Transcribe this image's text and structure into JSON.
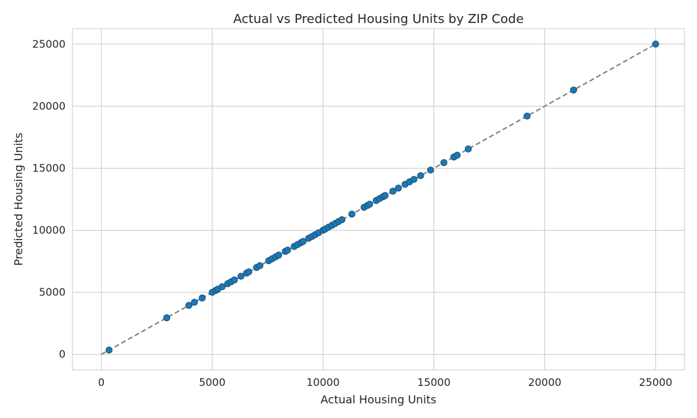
{
  "chart_data": {
    "type": "scatter",
    "title": "Actual vs Predicted Housing Units by ZIP Code",
    "xlabel": "Actual Housing Units",
    "ylabel": "Predicted Housing Units",
    "xlim": [
      -1300,
      26300
    ],
    "ylim": [
      -1250,
      26250
    ],
    "xticks": [
      0,
      5000,
      10000,
      15000,
      20000,
      25000
    ],
    "yticks": [
      0,
      5000,
      10000,
      15000,
      20000,
      25000
    ],
    "grid": true,
    "legend": "none",
    "colors": {
      "points": "#1f77b4",
      "reference_line": "#808080",
      "grid": "#cccccc"
    },
    "reference_line": {
      "style": "dashed",
      "from": [
        0,
        0
      ],
      "to": [
        25000,
        25000
      ]
    },
    "points": [
      [
        350,
        350
      ],
      [
        2950,
        2950
      ],
      [
        3950,
        3950
      ],
      [
        4200,
        4200
      ],
      [
        4550,
        4550
      ],
      [
        5000,
        5000
      ],
      [
        5150,
        5150
      ],
      [
        5250,
        5250
      ],
      [
        5450,
        5450
      ],
      [
        5700,
        5700
      ],
      [
        5850,
        5850
      ],
      [
        6000,
        6000
      ],
      [
        6300,
        6300
      ],
      [
        6550,
        6550
      ],
      [
        6650,
        6650
      ],
      [
        7000,
        7000
      ],
      [
        7150,
        7150
      ],
      [
        7550,
        7550
      ],
      [
        7700,
        7700
      ],
      [
        7850,
        7850
      ],
      [
        8000,
        8000
      ],
      [
        8300,
        8300
      ],
      [
        8400,
        8400
      ],
      [
        8700,
        8700
      ],
      [
        8850,
        8850
      ],
      [
        9000,
        9000
      ],
      [
        9100,
        9100
      ],
      [
        9350,
        9350
      ],
      [
        9500,
        9500
      ],
      [
        9650,
        9650
      ],
      [
        9800,
        9800
      ],
      [
        10000,
        10000
      ],
      [
        10100,
        10100
      ],
      [
        10250,
        10250
      ],
      [
        10400,
        10400
      ],
      [
        10550,
        10550
      ],
      [
        10700,
        10700
      ],
      [
        10850,
        10850
      ],
      [
        11300,
        11300
      ],
      [
        11850,
        11850
      ],
      [
        12000,
        12000
      ],
      [
        12100,
        12100
      ],
      [
        12400,
        12400
      ],
      [
        12550,
        12550
      ],
      [
        12700,
        12700
      ],
      [
        12800,
        12800
      ],
      [
        13150,
        13150
      ],
      [
        13400,
        13400
      ],
      [
        13700,
        13700
      ],
      [
        13900,
        13900
      ],
      [
        14100,
        14100
      ],
      [
        14400,
        14400
      ],
      [
        14850,
        14850
      ],
      [
        15450,
        15450
      ],
      [
        15900,
        15900
      ],
      [
        16050,
        16050
      ],
      [
        16550,
        16550
      ],
      [
        19200,
        19200
      ],
      [
        21300,
        21300
      ],
      [
        25000,
        25000
      ]
    ]
  }
}
